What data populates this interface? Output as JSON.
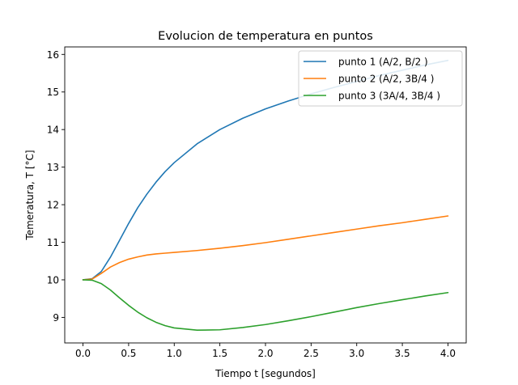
{
  "chart_data": {
    "type": "line",
    "title": "Evolucion de temperatura en puntos",
    "xlabel": "Tiempo t [segundos]",
    "ylabel": "Temeratura, T [°C]",
    "xlim": [
      -0.2,
      4.2
    ],
    "ylim": [
      8.32,
      16.2
    ],
    "xticks": [
      0.0,
      0.5,
      1.0,
      1.5,
      2.0,
      2.5,
      3.0,
      3.5,
      4.0
    ],
    "xtick_labels": [
      "0.0",
      "0.5",
      "1.0",
      "1.5",
      "2.0",
      "2.5",
      "3.0",
      "3.5",
      "4.0"
    ],
    "yticks": [
      9,
      10,
      11,
      12,
      13,
      14,
      15,
      16
    ],
    "ytick_labels": [
      "9",
      "10",
      "11",
      "12",
      "13",
      "14",
      "15",
      "16"
    ],
    "grid": false,
    "legend_position": "top-right",
    "x": [
      0.0,
      0.1,
      0.2,
      0.3,
      0.4,
      0.5,
      0.6,
      0.7,
      0.8,
      0.9,
      1.0,
      1.25,
      1.5,
      1.75,
      2.0,
      2.25,
      2.5,
      2.75,
      3.0,
      3.25,
      3.5,
      3.75,
      4.0
    ],
    "series": [
      {
        "name": "punto 1 (A/2, B/2 )",
        "color": "#1f77b4",
        "values": [
          10.0,
          10.03,
          10.22,
          10.6,
          11.05,
          11.5,
          11.92,
          12.28,
          12.6,
          12.88,
          13.12,
          13.62,
          14.0,
          14.3,
          14.55,
          14.76,
          14.95,
          15.12,
          15.28,
          15.44,
          15.58,
          15.72,
          15.84
        ]
      },
      {
        "name": "punto 2 (A/2, 3B/4 )",
        "color": "#ff7f0e",
        "values": [
          10.0,
          10.02,
          10.17,
          10.34,
          10.46,
          10.55,
          10.61,
          10.66,
          10.69,
          10.71,
          10.73,
          10.78,
          10.84,
          10.91,
          10.99,
          11.08,
          11.17,
          11.26,
          11.35,
          11.44,
          11.52,
          11.61,
          11.7
        ]
      },
      {
        "name": "punto 3 (3A/4, 3B/4 )",
        "color": "#2ca02c",
        "values": [
          10.0,
          9.99,
          9.9,
          9.73,
          9.52,
          9.32,
          9.14,
          8.99,
          8.87,
          8.78,
          8.72,
          8.66,
          8.67,
          8.73,
          8.81,
          8.91,
          9.02,
          9.14,
          9.26,
          9.37,
          9.47,
          9.57,
          9.66
        ]
      }
    ]
  }
}
